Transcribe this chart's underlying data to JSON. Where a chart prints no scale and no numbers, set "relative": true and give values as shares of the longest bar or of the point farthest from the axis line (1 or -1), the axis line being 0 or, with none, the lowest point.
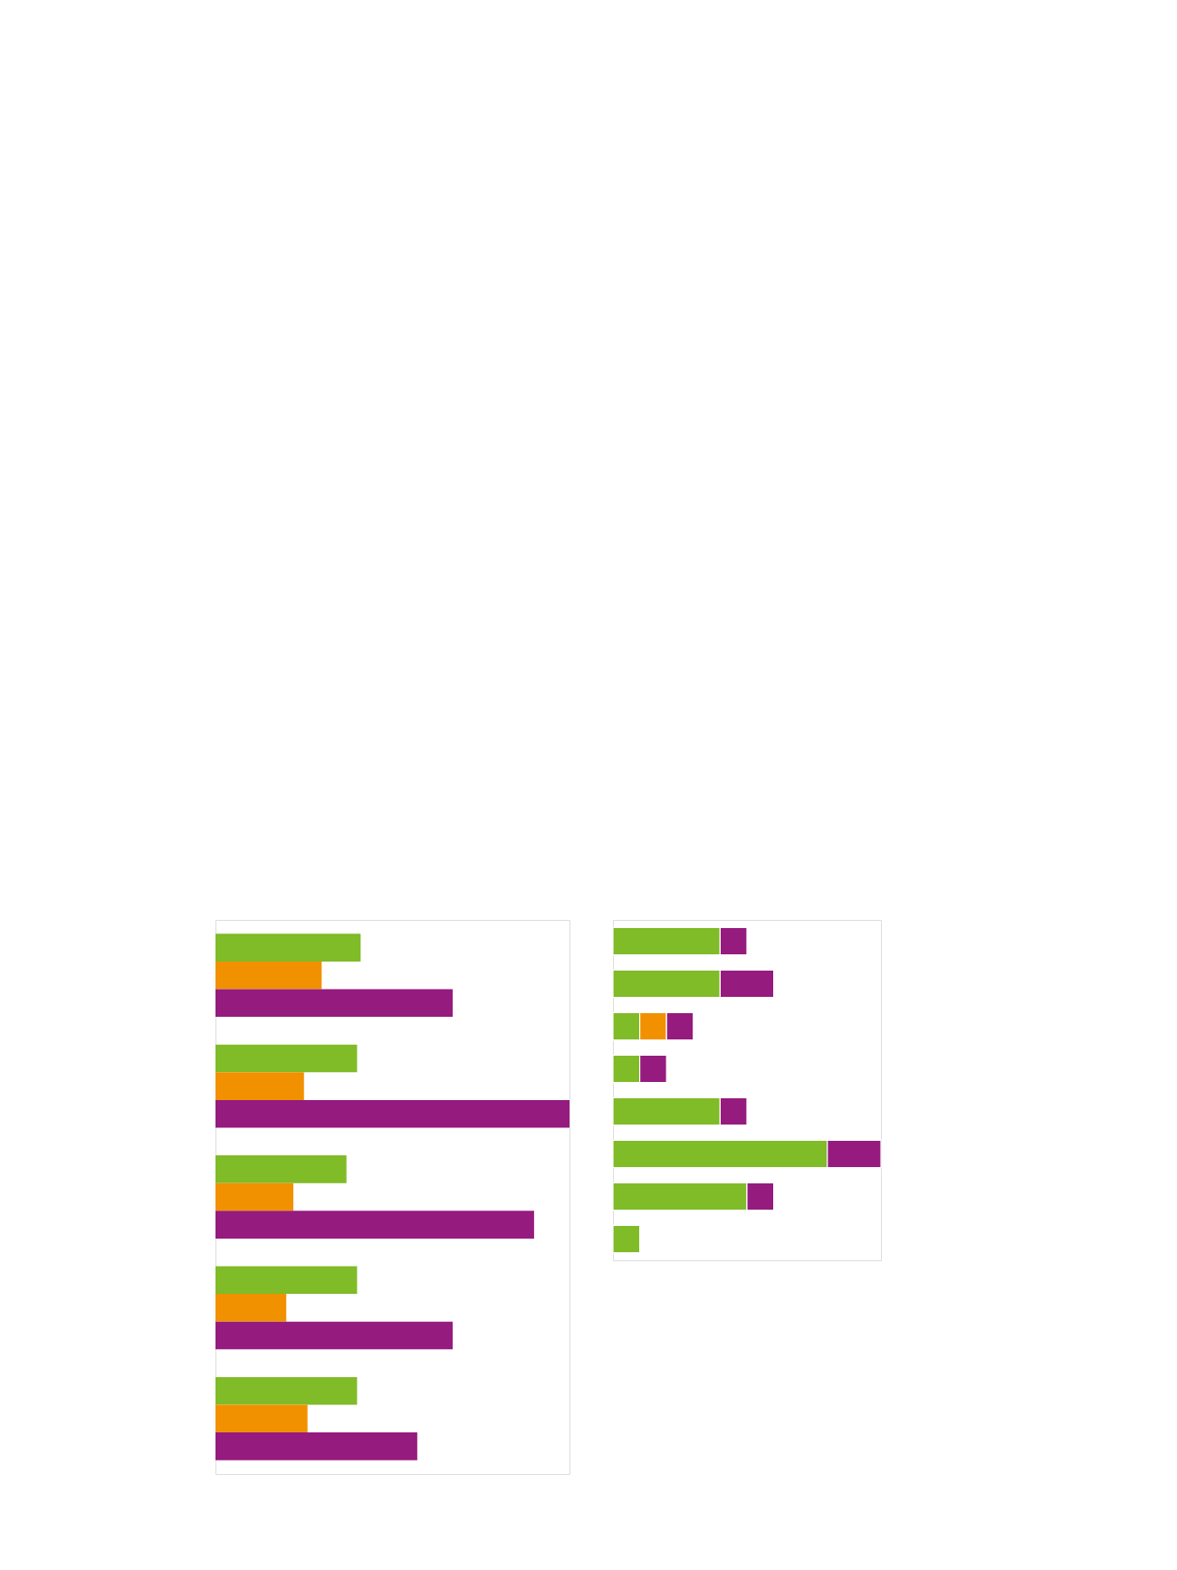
{
  "chart_data": [
    {
      "type": "bar",
      "orientation": "horizontal",
      "relative": true,
      "categories": [
        null,
        null,
        null,
        null,
        null
      ],
      "series": [
        {
          "color": "#80bb28",
          "values": [
            0.41,
            0.4,
            0.37,
            0.4,
            0.4
          ]
        },
        {
          "color": "#f29100",
          "values": [
            0.3,
            0.25,
            0.22,
            0.2,
            0.26
          ]
        },
        {
          "color": "#951b7e",
          "values": [
            0.67,
            1,
            0.9,
            0.67,
            0.57
          ]
        }
      ]
    },
    {
      "type": "bar",
      "orientation": "horizontal",
      "stacked": true,
      "relative": true,
      "categories": [
        null,
        null,
        null,
        null,
        null,
        null,
        null,
        null
      ],
      "series": [
        {
          "color": "#80bb28",
          "values": [
            0.4,
            0.4,
            0.1,
            0.1,
            0.4,
            0.8,
            0.5,
            0.1
          ]
        },
        {
          "color": "#f29100",
          "values": [
            null,
            null,
            0.1,
            null,
            null,
            null,
            null,
            null
          ]
        },
        {
          "color": "#951b7e",
          "values": [
            0.1,
            0.2,
            0.1,
            0.1,
            0.1,
            0.2,
            0.1,
            null
          ]
        }
      ]
    }
  ]
}
